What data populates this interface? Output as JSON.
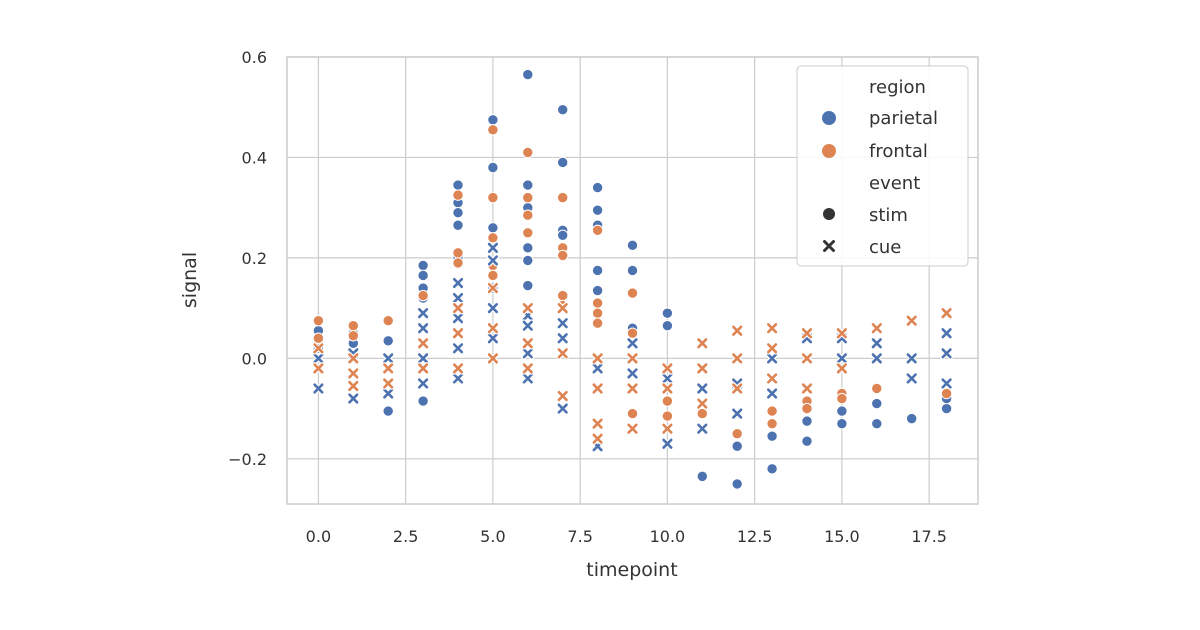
{
  "chart_data": {
    "type": "scatter",
    "xlabel": "timepoint",
    "ylabel": "signal",
    "xlim": [
      -0.9,
      18.9
    ],
    "ylim": [
      -0.29,
      0.6
    ],
    "x_ticks": [
      0,
      2.5,
      5,
      7.5,
      10,
      12.5,
      15,
      17.5
    ],
    "x_tick_labels": [
      "0.0",
      "2.5",
      "5.0",
      "7.5",
      "10.0",
      "12.5",
      "15.0",
      "17.5"
    ],
    "y_ticks": [
      -0.2,
      0,
      0.2,
      0.4,
      0.6
    ],
    "y_tick_labels": [
      "−0.2",
      "0.0",
      "0.2",
      "0.4",
      "0.6"
    ],
    "grid": true,
    "legend": {
      "placement": "top-right",
      "hue_title": "region",
      "style_title": "event",
      "hue_entries": [
        {
          "label": "parietal",
          "color": "#4c72b0"
        },
        {
          "label": "frontal",
          "color": "#dd8452"
        }
      ],
      "style_entries": [
        {
          "label": "stim",
          "marker": "circle"
        },
        {
          "label": "cue",
          "marker": "x"
        }
      ]
    },
    "series": [
      {
        "region": "parietal",
        "event": "stim",
        "color": "#4c72b0",
        "marker": "circle",
        "points": [
          [
            0,
            0.055
          ],
          [
            0,
            0.035
          ],
          [
            0,
            0.02
          ],
          [
            1,
            0.05
          ],
          [
            1,
            0.03
          ],
          [
            2,
            -0.105
          ],
          [
            2,
            0.035
          ],
          [
            3,
            0.185
          ],
          [
            3,
            0.165
          ],
          [
            3,
            0.14
          ],
          [
            3,
            0.12
          ],
          [
            3,
            -0.085
          ],
          [
            4,
            0.345
          ],
          [
            4,
            0.31
          ],
          [
            4,
            0.29
          ],
          [
            4,
            0.265
          ],
          [
            4,
            0.2
          ],
          [
            5,
            0.475
          ],
          [
            5,
            0.38
          ],
          [
            5,
            0.26
          ],
          [
            5,
            0.14
          ],
          [
            6,
            0.565
          ],
          [
            6,
            0.345
          ],
          [
            6,
            0.3
          ],
          [
            6,
            0.285
          ],
          [
            6,
            0.25
          ],
          [
            6,
            0.22
          ],
          [
            6,
            0.195
          ],
          [
            6,
            0.145
          ],
          [
            7,
            0.495
          ],
          [
            7,
            0.39
          ],
          [
            7,
            0.255
          ],
          [
            7,
            0.245
          ],
          [
            8,
            0.34
          ],
          [
            8,
            0.295
          ],
          [
            8,
            0.265
          ],
          [
            8,
            0.175
          ],
          [
            8,
            0.135
          ],
          [
            9,
            0.225
          ],
          [
            9,
            0.175
          ],
          [
            9,
            0.06
          ],
          [
            10,
            0.09
          ],
          [
            10,
            0.065
          ],
          [
            11,
            -0.235
          ],
          [
            12,
            -0.175
          ],
          [
            12,
            -0.25
          ],
          [
            13,
            -0.155
          ],
          [
            13,
            -0.22
          ],
          [
            14,
            -0.165
          ],
          [
            14,
            -0.125
          ],
          [
            15,
            -0.13
          ],
          [
            15,
            -0.105
          ],
          [
            16,
            -0.13
          ],
          [
            16,
            -0.09
          ],
          [
            17,
            -0.12
          ],
          [
            18,
            -0.1
          ],
          [
            18,
            -0.08
          ]
        ]
      },
      {
        "region": "frontal",
        "event": "stim",
        "color": "#dd8452",
        "marker": "circle",
        "points": [
          [
            0,
            0.075
          ],
          [
            0,
            0.04
          ],
          [
            1,
            0.065
          ],
          [
            1,
            0.045
          ],
          [
            2,
            0.075
          ],
          [
            3,
            0.125
          ],
          [
            4,
            0.325
          ],
          [
            4,
            0.21
          ],
          [
            4,
            0.19
          ],
          [
            5,
            0.455
          ],
          [
            5,
            0.32
          ],
          [
            5,
            0.24
          ],
          [
            5,
            0.185
          ],
          [
            5,
            0.165
          ],
          [
            6,
            0.41
          ],
          [
            6,
            0.32
          ],
          [
            6,
            0.285
          ],
          [
            6,
            0.25
          ],
          [
            7,
            0.32
          ],
          [
            7,
            0.22
          ],
          [
            7,
            0.205
          ],
          [
            7,
            0.125
          ],
          [
            7,
            0.105
          ],
          [
            8,
            0.255
          ],
          [
            8,
            0.11
          ],
          [
            8,
            0.09
          ],
          [
            8,
            0.07
          ],
          [
            9,
            0.13
          ],
          [
            9,
            0.05
          ],
          [
            9,
            -0.11
          ],
          [
            10,
            -0.085
          ],
          [
            10,
            -0.115
          ],
          [
            11,
            -0.11
          ],
          [
            12,
            -0.15
          ],
          [
            13,
            -0.105
          ],
          [
            13,
            -0.13
          ],
          [
            14,
            -0.085
          ],
          [
            14,
            -0.1
          ],
          [
            15,
            -0.07
          ],
          [
            15,
            -0.08
          ],
          [
            16,
            -0.06
          ],
          [
            18,
            -0.07
          ]
        ]
      },
      {
        "region": "parietal",
        "event": "cue",
        "color": "#4c72b0",
        "marker": "x",
        "points": [
          [
            0,
            -0.06
          ],
          [
            0,
            0.0
          ],
          [
            1,
            0.01
          ],
          [
            1,
            -0.08
          ],
          [
            2,
            -0.07
          ],
          [
            2,
            0.0
          ],
          [
            3,
            0.09
          ],
          [
            3,
            0.06
          ],
          [
            3,
            0.0
          ],
          [
            3,
            -0.05
          ],
          [
            4,
            0.15
          ],
          [
            4,
            0.12
          ],
          [
            4,
            0.08
          ],
          [
            4,
            0.02
          ],
          [
            4,
            -0.04
          ],
          [
            5,
            0.22
          ],
          [
            5,
            0.195
          ],
          [
            5,
            0.1
          ],
          [
            5,
            0.04
          ],
          [
            6,
            0.085
          ],
          [
            6,
            0.065
          ],
          [
            6,
            0.01
          ],
          [
            6,
            -0.04
          ],
          [
            7,
            0.07
          ],
          [
            7,
            0.04
          ],
          [
            7,
            -0.1
          ],
          [
            8,
            -0.175
          ],
          [
            8,
            -0.02
          ],
          [
            9,
            0.03
          ],
          [
            9,
            -0.03
          ],
          [
            10,
            -0.17
          ],
          [
            10,
            -0.04
          ],
          [
            11,
            -0.14
          ],
          [
            11,
            -0.06
          ],
          [
            12,
            -0.11
          ],
          [
            12,
            -0.05
          ],
          [
            13,
            -0.07
          ],
          [
            13,
            0.0
          ],
          [
            14,
            0.04
          ],
          [
            14,
            0.0
          ],
          [
            15,
            0.04
          ],
          [
            15,
            0.0
          ],
          [
            16,
            0.03
          ],
          [
            16,
            0.0
          ],
          [
            17,
            0.0
          ],
          [
            17,
            -0.04
          ],
          [
            18,
            0.05
          ],
          [
            18,
            0.01
          ],
          [
            18,
            -0.05
          ]
        ]
      },
      {
        "region": "frontal",
        "event": "cue",
        "color": "#dd8452",
        "marker": "x",
        "points": [
          [
            0,
            0.02
          ],
          [
            0,
            -0.02
          ],
          [
            1,
            0.0
          ],
          [
            1,
            -0.03
          ],
          [
            1,
            -0.055
          ],
          [
            2,
            -0.02
          ],
          [
            2,
            -0.05
          ],
          [
            3,
            0.03
          ],
          [
            3,
            -0.02
          ],
          [
            4,
            0.1
          ],
          [
            4,
            0.05
          ],
          [
            4,
            -0.02
          ],
          [
            5,
            0.14
          ],
          [
            5,
            0.06
          ],
          [
            5,
            0.0
          ],
          [
            6,
            0.1
          ],
          [
            6,
            0.03
          ],
          [
            6,
            -0.02
          ],
          [
            7,
            0.1
          ],
          [
            7,
            0.01
          ],
          [
            7,
            -0.075
          ],
          [
            8,
            -0.13
          ],
          [
            8,
            -0.16
          ],
          [
            8,
            0.0
          ],
          [
            8,
            -0.06
          ],
          [
            9,
            0.0
          ],
          [
            9,
            -0.06
          ],
          [
            9,
            -0.14
          ],
          [
            10,
            -0.02
          ],
          [
            10,
            -0.06
          ],
          [
            10,
            -0.14
          ],
          [
            11,
            0.03
          ],
          [
            11,
            -0.02
          ],
          [
            11,
            -0.09
          ],
          [
            12,
            0.055
          ],
          [
            12,
            0.0
          ],
          [
            12,
            -0.06
          ],
          [
            13,
            0.06
          ],
          [
            13,
            0.02
          ],
          [
            13,
            -0.04
          ],
          [
            14,
            0.05
          ],
          [
            14,
            0.0
          ],
          [
            14,
            -0.06
          ],
          [
            15,
            0.05
          ],
          [
            15,
            -0.02
          ],
          [
            16,
            0.06
          ],
          [
            17,
            0.075
          ],
          [
            18,
            0.09
          ]
        ]
      }
    ]
  }
}
